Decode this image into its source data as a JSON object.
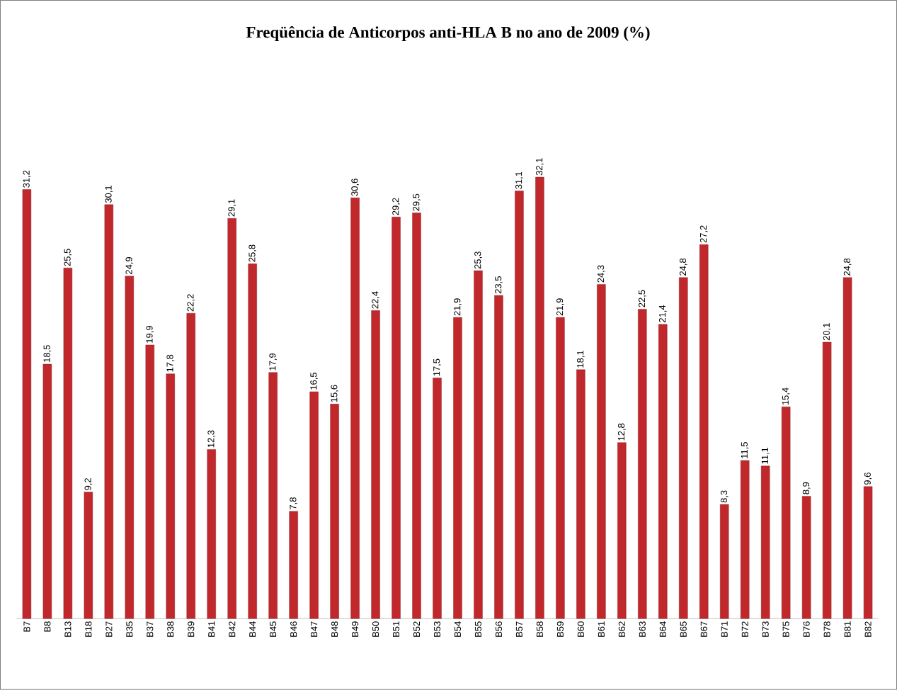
{
  "chart_data": {
    "type": "bar",
    "title": "Freqüência de Anticorpos anti-HLA B no ano de 2009 (%)",
    "categories": [
      "B7",
      "B8",
      "B13",
      "B18",
      "B27",
      "B35",
      "B37",
      "B38",
      "B39",
      "B41",
      "B42",
      "B44",
      "B45",
      "B46",
      "B47",
      "B48",
      "B49",
      "B50",
      "B51",
      "B52",
      "B53",
      "B54",
      "B55",
      "B56",
      "B57",
      "B58",
      "B59",
      "B60",
      "B61",
      "B62",
      "B63",
      "B64",
      "B65",
      "B67",
      "B71",
      "B72",
      "B73",
      "B75",
      "B76",
      "B78",
      "B81",
      "B82"
    ],
    "values": [
      31.2,
      18.5,
      25.5,
      9.2,
      30.1,
      24.9,
      19.9,
      17.8,
      22.2,
      12.3,
      29.1,
      25.8,
      17.9,
      7.8,
      16.5,
      15.6,
      30.6,
      22.4,
      29.2,
      29.5,
      17.5,
      21.9,
      25.3,
      23.5,
      31.1,
      32.1,
      21.9,
      18.1,
      24.3,
      12.8,
      22.5,
      21.4,
      24.8,
      27.2,
      8.3,
      11.5,
      11.1,
      15.4,
      8.9,
      20.1,
      24.8,
      9.6
    ],
    "value_labels": [
      "31,2",
      "18,5",
      "25,5",
      "9,2",
      "30,1",
      "24,9",
      "19,9",
      "17,8",
      "22,2",
      "12,3",
      "29,1",
      "25,8",
      "17,9",
      "7,8",
      "16,5",
      "15,6",
      "30,6",
      "22,4",
      "29,2",
      "29,5",
      "17,5",
      "21,9",
      "25,3",
      "23,5",
      "31,1",
      "32,1",
      "21,9",
      "18,1",
      "24,3",
      "12,8",
      "22,5",
      "21,4",
      "24,8",
      "27,2",
      "8,3",
      "11,5",
      "11,1",
      "15,4",
      "8,9",
      "20,1",
      "24,8",
      "9,6"
    ],
    "color": "#c0282c"
  }
}
